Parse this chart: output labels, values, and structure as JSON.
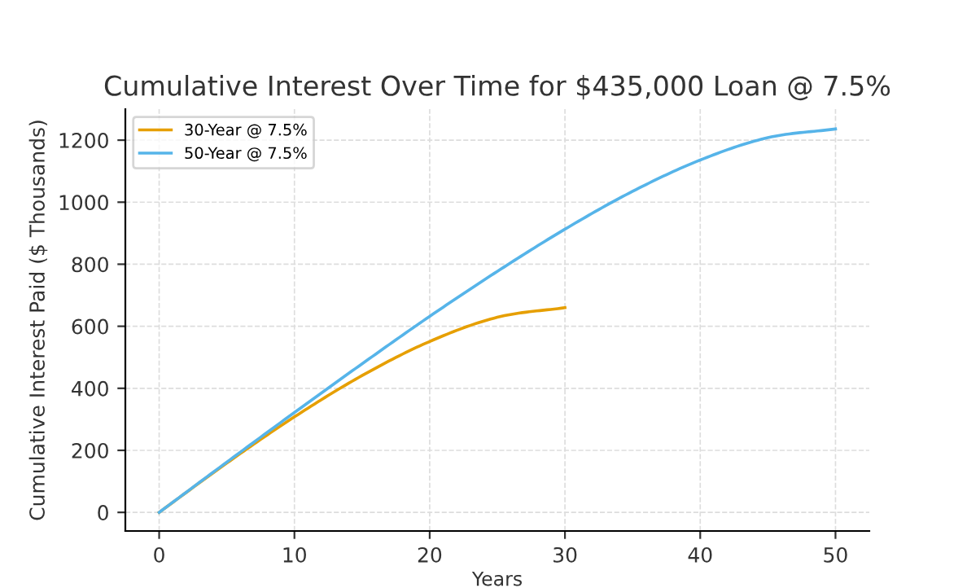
{
  "chart_data": {
    "type": "line",
    "title": "Cumulative Interest Over Time for $435,000 Loan @ 7.5%",
    "xlabel": "Years",
    "ylabel": "Cumulative Interest Paid ($ Thousands)",
    "series": [
      {
        "name": "30-Year @ 7.5%",
        "color": "#e69f00",
        "x": [
          0,
          5,
          10,
          15,
          20,
          25,
          30
        ],
        "values": [
          0,
          159,
          308,
          441,
          551,
          629,
          660
        ]
      },
      {
        "name": "50-Year @ 7.5%",
        "color": "#56b4e9",
        "x": [
          0,
          5,
          10,
          15,
          20,
          25,
          30,
          35,
          40,
          45,
          50
        ],
        "values": [
          0,
          162,
          322,
          479,
          632,
          777,
          913,
          1035,
          1136,
          1208,
          1236
        ]
      }
    ],
    "xlim": [
      -2.5,
      52.5
    ],
    "ylim": [
      -60,
      1300
    ],
    "xticks": [
      0,
      10,
      20,
      30,
      40,
      50
    ],
    "yticks": [
      0,
      200,
      400,
      600,
      800,
      1000,
      1200
    ],
    "grid": true,
    "legend": "top left",
    "line_style": "solid",
    "marker": "none"
  }
}
